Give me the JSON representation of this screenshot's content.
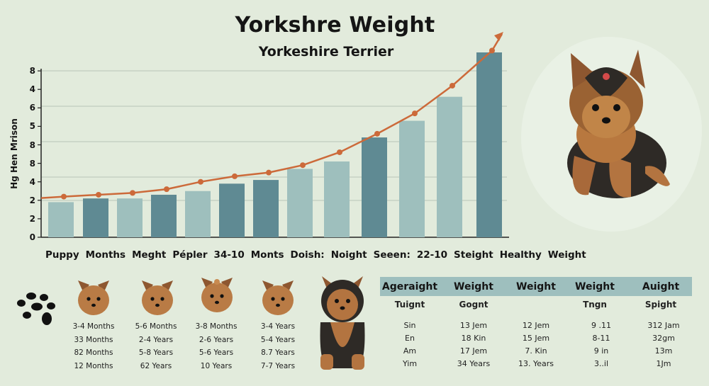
{
  "header": {
    "title": "Yorkshre Weight",
    "subtitle": "Yorkeshire Terrier"
  },
  "chart_data": {
    "type": "bar",
    "title": "Yorkshre Weight",
    "subtitle": "Yorkeshire Terrier",
    "xlabel": "",
    "ylabel": "Hg Hen Mrison",
    "y_tick_labels": [
      "0",
      "2",
      "2",
      "4",
      "8",
      "8",
      "5",
      "6",
      "4",
      "8"
    ],
    "ylim": [
      0,
      9
    ],
    "grid": true,
    "categories": [
      "Puppy",
      "Months",
      "Meght",
      "Pépler",
      "34-10",
      "Monts",
      "Doish:",
      "Noight",
      "Seeen:",
      "22-10",
      "Steight",
      "Healthy",
      "Weight"
    ],
    "series": [
      {
        "name": "bars",
        "type": "bar",
        "values": [
          1.9,
          2.1,
          2.1,
          2.3,
          2.5,
          2.9,
          3.1,
          3.7,
          4.1,
          5.4,
          6.3,
          7.6,
          10.0
        ],
        "colors": [
          "#9ebfbd",
          "#5f8a93",
          "#9ebfbd",
          "#5f8a93",
          "#9ebfbd",
          "#5f8a93",
          "#5f8a93",
          "#9ebfbd",
          "#9ebfbd",
          "#5f8a93",
          "#9ebfbd",
          "#9ebfbd",
          "#5f8a93"
        ]
      },
      {
        "name": "trend",
        "type": "line",
        "color": "#cc6a3a",
        "values": [
          2.2,
          2.3,
          2.4,
          2.6,
          3.0,
          3.3,
          3.5,
          3.9,
          4.6,
          5.6,
          6.7,
          8.2,
          10.1
        ]
      }
    ],
    "x_label_text": [
      "Puppy",
      "Months",
      "Meght",
      "Pépler",
      "34-10",
      "Monts",
      "Doish:",
      "Noight",
      "Seeen:",
      "22-10",
      "Steight",
      "Healthy",
      "Weight"
    ]
  },
  "gallery": {
    "paw_icon": "paw-print-icon",
    "columns": [
      {
        "image": "yorkie-puppy-head",
        "lines": [
          "3-4 Months",
          "33 Months",
          "82 Months",
          "12 Months"
        ]
      },
      {
        "image": "yorkie-young-head",
        "lines": [
          "5-6 Months",
          "2-4 Years",
          "5-8 Years",
          "62 Years"
        ]
      },
      {
        "image": "yorkie-bow-head",
        "lines": [
          "3-8 Months",
          "2-6 Years",
          "5-6 Years",
          "10 Years"
        ]
      },
      {
        "image": "yorkie-adult-head",
        "lines": [
          "3-4 Years",
          "5-4 Years",
          "8.7 Years",
          "7-7 Years"
        ]
      }
    ],
    "full_dog": "yorkie-standing"
  },
  "table": {
    "headers": [
      "Ageraight",
      "Weight",
      "Weight",
      "Weight",
      "Auight"
    ],
    "subheaders": [
      "Tuignt",
      "Gognt",
      "",
      "Tngn",
      "Spight"
    ],
    "rows": [
      [
        "Sin",
        "13 Jem",
        "12 Jem",
        "9 .11",
        "312 Jam"
      ],
      [
        "En",
        "18 Kin",
        "15 Jem",
        "8-11",
        "32gm"
      ],
      [
        "Am",
        "17 Jem",
        "7. Kin",
        "9 in",
        "13m"
      ],
      [
        "Yim",
        "34 Years",
        "13. Years",
        "3..il",
        "1Jm"
      ]
    ],
    "header_color": "#9ebfbe"
  },
  "hero": {
    "image": "yorkshire-terrier-puppy-sitting"
  }
}
